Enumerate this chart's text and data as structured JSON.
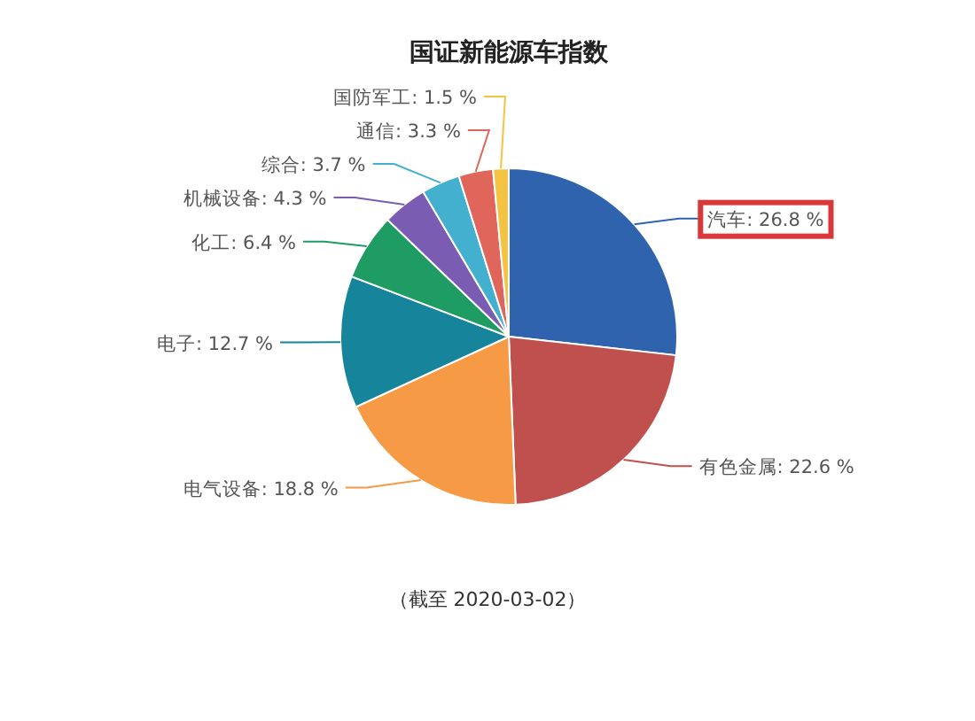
{
  "chart_data": {
    "type": "pie",
    "title": "国证新能源车指数",
    "categories": [
      "汽车",
      "有色金属",
      "电气设备",
      "电子",
      "化工",
      "机械设备",
      "综合",
      "通信",
      "国防军工"
    ],
    "values": [
      26.8,
      22.6,
      18.8,
      12.7,
      6.4,
      4.3,
      3.7,
      3.3,
      1.5
    ],
    "value_labels": [
      "26.8 %",
      "22.6 %",
      "18.8 %",
      "12.7 %",
      "6.4 %",
      "4.3 %",
      "3.7 %",
      "3.3 %",
      "1.5 %"
    ],
    "colors": [
      "#2f63ad",
      "#c0504d",
      "#f79a46",
      "#16849a",
      "#1f9b64",
      "#7b5cb3",
      "#43b0cf",
      "#e0655a",
      "#f5c342"
    ],
    "annotations": [
      "（截至 2020-03-02）"
    ]
  }
}
